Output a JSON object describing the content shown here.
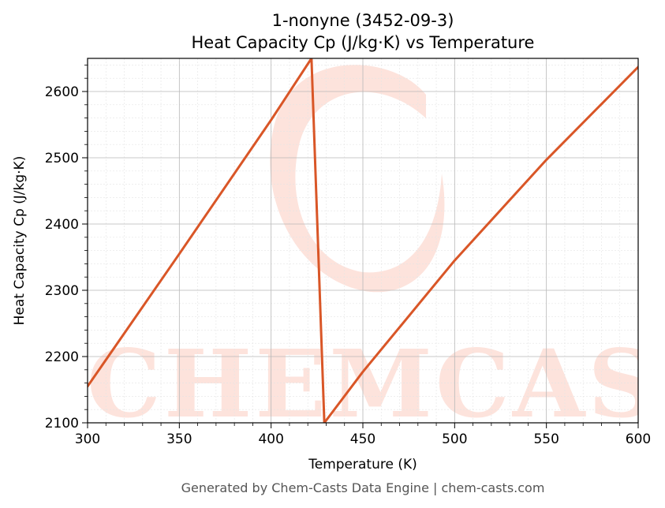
{
  "chart_data": {
    "type": "line",
    "title": "1-nonyne (3452-09-3)",
    "subtitle": "Heat Capacity Cp (J/kg·K) vs Temperature",
    "xlabel": "Temperature (K)",
    "ylabel": "Heat Capacity Cp (J/kg·K)",
    "xlim": [
      300,
      600
    ],
    "ylim": [
      2100,
      2650
    ],
    "x_ticks": [
      300,
      350,
      400,
      450,
      500,
      550,
      600
    ],
    "y_ticks": [
      2100,
      2200,
      2300,
      2400,
      2500,
      2600
    ],
    "grid": true,
    "series": [
      {
        "color": "#d95627",
        "points": [
          [
            300,
            2155
          ],
          [
            350,
            2355
          ],
          [
            400,
            2557
          ],
          [
            422,
            2650
          ],
          [
            429,
            2100
          ],
          [
            450,
            2177
          ],
          [
            500,
            2345
          ],
          [
            550,
            2497
          ],
          [
            600,
            2637
          ]
        ]
      }
    ],
    "watermark": "CHEMCASTS",
    "footer": "Generated by Chem-Casts Data Engine | chem-casts.com"
  }
}
